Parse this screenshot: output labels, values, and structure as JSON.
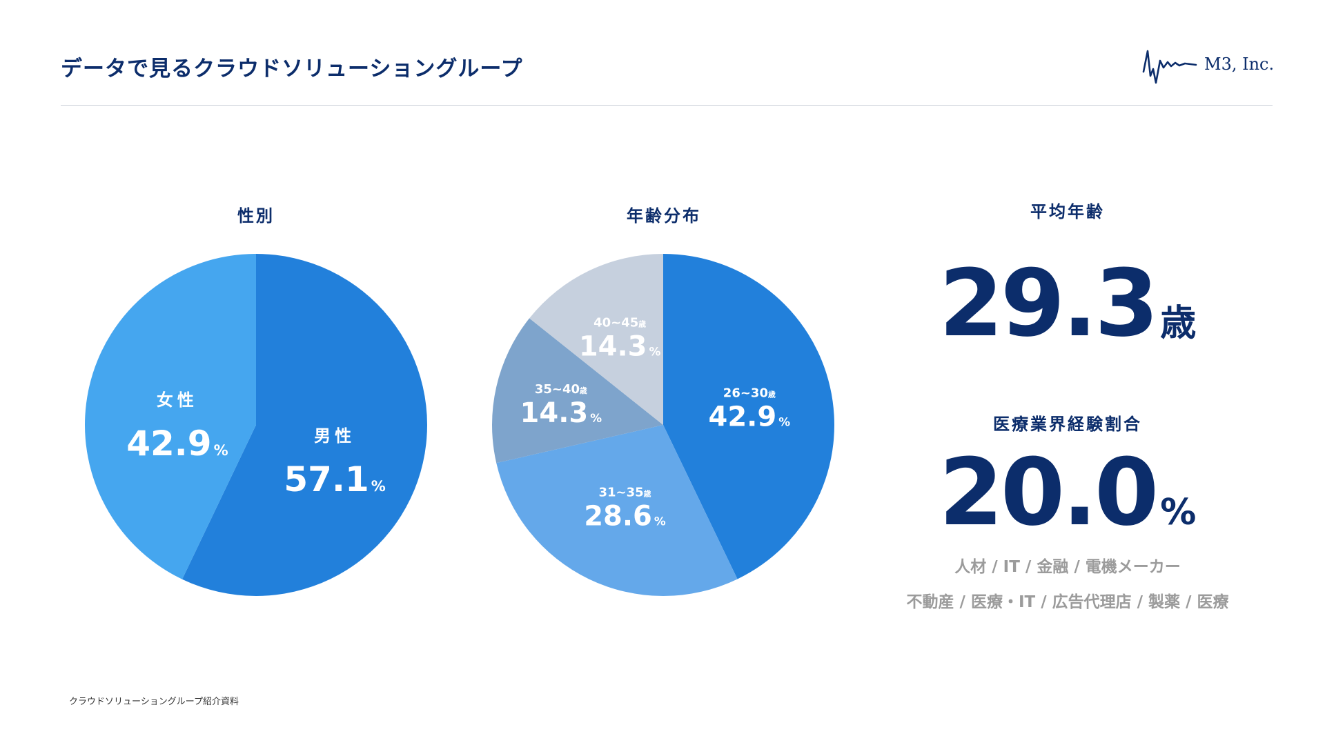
{
  "header": {
    "title": "データで見るクラウドソリューショングループ",
    "logo_text": "M3, Inc."
  },
  "chart_data": [
    {
      "type": "pie",
      "title": "性別",
      "unit": "%",
      "slices": [
        {
          "label": "男性",
          "value": 57.1,
          "value_label": "57.1",
          "color": "#2280db"
        },
        {
          "label": "女性",
          "value": 42.9,
          "value_label": "42.9",
          "color": "#45a6ef"
        }
      ]
    },
    {
      "type": "pie",
      "title": "年齢分布",
      "unit": "%",
      "age_suffix": "歳",
      "slices": [
        {
          "label": "26~30",
          "value": 42.9,
          "value_label": "42.9",
          "color": "#2280db"
        },
        {
          "label": "31~35",
          "value": 28.6,
          "value_label": "28.6",
          "color": "#64a8ea"
        },
        {
          "label": "35~40",
          "value": 14.3,
          "value_label": "14.3",
          "color": "#7ea4cc"
        },
        {
          "label": "40~45",
          "value": 14.3,
          "value_label": "14.3",
          "color": "#c6d0de"
        }
      ]
    }
  ],
  "stats": {
    "avg_age": {
      "title": "平均年齢",
      "value": "29.3",
      "unit": "歳"
    },
    "medical_experience": {
      "title": "医療業界経験割合",
      "value": "20.0",
      "unit": "%",
      "industries_line1": "人材 / IT / 金融 / 電機メーカー",
      "industries_line2": "不動産 / 医療・IT / 広告代理店 / 製薬 / 医療"
    }
  },
  "footer": {
    "text": "クラウドソリューショングループ紹介資料"
  },
  "colors": {
    "navy": "#0c2d6b",
    "gray_text": "#9b9b9b"
  }
}
